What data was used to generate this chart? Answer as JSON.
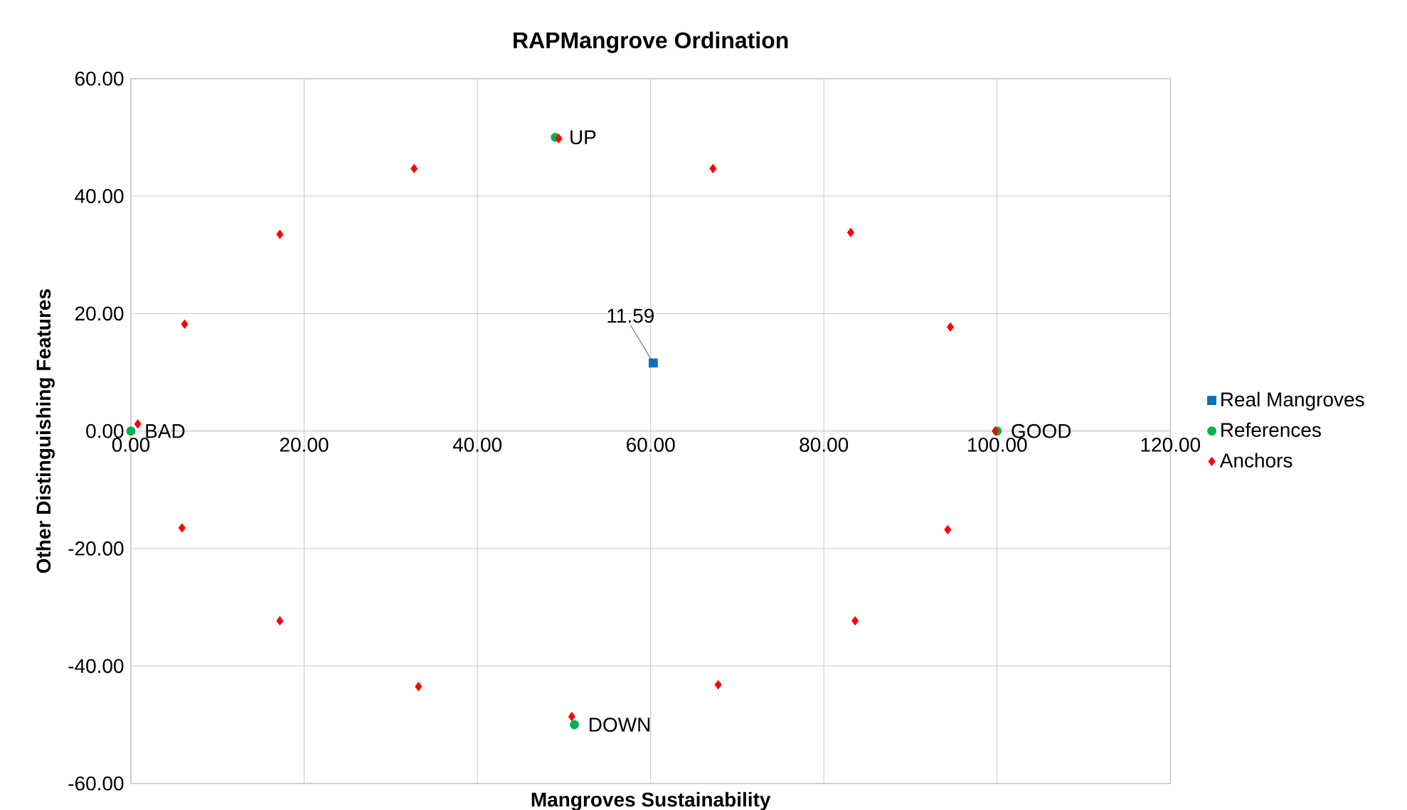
{
  "chart_data": {
    "type": "scatter",
    "title": "RAPMangrove Ordination",
    "xlabel": "Mangroves Sustainability",
    "ylabel": "Other Distinguishing Features",
    "xlim": [
      0,
      120
    ],
    "ylim": [
      -60,
      60
    ],
    "xticks": [
      {
        "value": 0,
        "label": "0.00"
      },
      {
        "value": 20,
        "label": "20.00"
      },
      {
        "value": 40,
        "label": "40.00"
      },
      {
        "value": 60,
        "label": "60.00"
      },
      {
        "value": 80,
        "label": "80.00"
      },
      {
        "value": 100,
        "label": "100.00"
      },
      {
        "value": 120,
        "label": "120.00"
      }
    ],
    "yticks": [
      {
        "value": -60,
        "label": "-60.00"
      },
      {
        "value": -40,
        "label": "-40.00"
      },
      {
        "value": -20,
        "label": "-20.00"
      },
      {
        "value": 0,
        "label": "0.00"
      },
      {
        "value": 20,
        "label": "20.00"
      },
      {
        "value": 40,
        "label": "40.00"
      },
      {
        "value": 60,
        "label": "60.00"
      }
    ],
    "grid": true,
    "legend": "right",
    "series": [
      {
        "name": "Real Mangroves",
        "color": "#0070c0",
        "marker": "square",
        "x": [
          60.3
        ],
        "values": [
          11.59
        ],
        "value_labels": [
          "11.59"
        ]
      },
      {
        "name": "References",
        "color": "#00b050",
        "marker": "circle",
        "x": [
          0,
          100,
          49,
          51.2
        ],
        "values": [
          0,
          0,
          50,
          -50
        ]
      },
      {
        "name": "Anchors",
        "color": "#ff0000",
        "marker": "diamond",
        "x": [
          0.8,
          6.2,
          17.2,
          32.7,
          49.4,
          67.2,
          83.1,
          94.6,
          99.8,
          94.3,
          83.6,
          67.8,
          50.9,
          33.2,
          17.2,
          5.9
        ],
        "values": [
          1.2,
          18.2,
          33.5,
          44.7,
          49.8,
          44.7,
          33.8,
          17.7,
          0,
          -16.8,
          -32.3,
          -43.2,
          -48.6,
          -43.5,
          -32.3,
          -16.5
        ]
      }
    ],
    "annotations": [
      {
        "text": "BAD",
        "x": 0,
        "y": 0
      },
      {
        "text": "GOOD",
        "x": 100,
        "y": 0
      },
      {
        "text": "UP",
        "x": 49,
        "y": 50
      },
      {
        "text": "DOWN",
        "x": 51.2,
        "y": -50
      }
    ]
  }
}
